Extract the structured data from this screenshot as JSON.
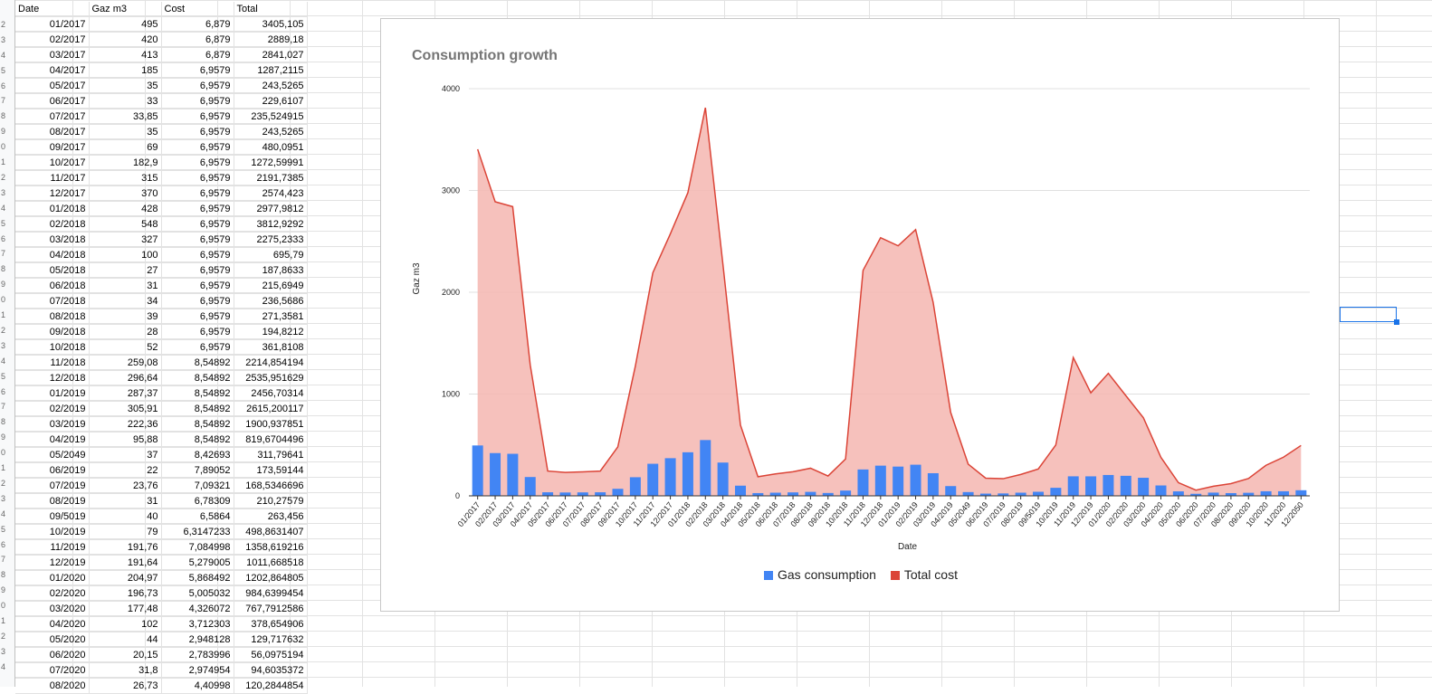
{
  "sheet": {
    "headers": [
      "Date",
      "Gaz m3",
      "Cost",
      "Total"
    ],
    "row_numbers": [
      "",
      "2",
      "3",
      "4",
      "5",
      "6",
      "7",
      "8",
      "9",
      "0",
      "1",
      "2",
      "3",
      "4",
      "5",
      "6",
      "7",
      "8",
      "9",
      "0",
      "1",
      "2",
      "3",
      "4",
      "5",
      "6",
      "7",
      "8",
      "9",
      "0",
      "1",
      "2",
      "3",
      "4",
      "5",
      "6",
      "7",
      "8",
      "9",
      "0",
      "1",
      "2",
      "3",
      "4"
    ],
    "rows": [
      [
        "01/2017",
        "495",
        "6,879",
        "3405,105"
      ],
      [
        "02/2017",
        "420",
        "6,879",
        "2889,18"
      ],
      [
        "03/2017",
        "413",
        "6,879",
        "2841,027"
      ],
      [
        "04/2017",
        "185",
        "6,9579",
        "1287,2115"
      ],
      [
        "05/2017",
        "35",
        "6,9579",
        "243,5265"
      ],
      [
        "06/2017",
        "33",
        "6,9579",
        "229,6107"
      ],
      [
        "07/2017",
        "33,85",
        "6,9579",
        "235,524915"
      ],
      [
        "08/2017",
        "35",
        "6,9579",
        "243,5265"
      ],
      [
        "09/2017",
        "69",
        "6,9579",
        "480,0951"
      ],
      [
        "10/2017",
        "182,9",
        "6,9579",
        "1272,59991"
      ],
      [
        "11/2017",
        "315",
        "6,9579",
        "2191,7385"
      ],
      [
        "12/2017",
        "370",
        "6,9579",
        "2574,423"
      ],
      [
        "01/2018",
        "428",
        "6,9579",
        "2977,9812"
      ],
      [
        "02/2018",
        "548",
        "6,9579",
        "3812,9292"
      ],
      [
        "03/2018",
        "327",
        "6,9579",
        "2275,2333"
      ],
      [
        "04/2018",
        "100",
        "6,9579",
        "695,79"
      ],
      [
        "05/2018",
        "27",
        "6,9579",
        "187,8633"
      ],
      [
        "06/2018",
        "31",
        "6,9579",
        "215,6949"
      ],
      [
        "07/2018",
        "34",
        "6,9579",
        "236,5686"
      ],
      [
        "08/2018",
        "39",
        "6,9579",
        "271,3581"
      ],
      [
        "09/2018",
        "28",
        "6,9579",
        "194,8212"
      ],
      [
        "10/2018",
        "52",
        "6,9579",
        "361,8108"
      ],
      [
        "11/2018",
        "259,08",
        "8,54892",
        "2214,854194"
      ],
      [
        "12/2018",
        "296,64",
        "8,54892",
        "2535,951629"
      ],
      [
        "01/2019",
        "287,37",
        "8,54892",
        "2456,70314"
      ],
      [
        "02/2019",
        "305,91",
        "8,54892",
        "2615,200117"
      ],
      [
        "03/2019",
        "222,36",
        "8,54892",
        "1900,937851"
      ],
      [
        "04/2019",
        "95,88",
        "8,54892",
        "819,6704496"
      ],
      [
        "05/2049",
        "37",
        "8,42693",
        "311,79641"
      ],
      [
        "06/2019",
        "22",
        "7,89052",
        "173,59144"
      ],
      [
        "07/2019",
        "23,76",
        "7,09321",
        "168,5346696"
      ],
      [
        "08/2019",
        "31",
        "6,78309",
        "210,27579"
      ],
      [
        "09/5019",
        "40",
        "6,5864",
        "263,456"
      ],
      [
        "10/2019",
        "79",
        "6,3147233",
        "498,8631407"
      ],
      [
        "11/2019",
        "191,76",
        "7,084998",
        "1358,619216"
      ],
      [
        "12/2019",
        "191,64",
        "5,279005",
        "1011,668518"
      ],
      [
        "01/2020",
        "204,97",
        "5,868492",
        "1202,864805"
      ],
      [
        "02/2020",
        "196,73",
        "5,005032",
        "984,6399454"
      ],
      [
        "03/2020",
        "177,48",
        "4,326072",
        "767,7912586"
      ],
      [
        "04/2020",
        "102",
        "3,712303",
        "378,654906"
      ],
      [
        "05/2020",
        "44",
        "2,948128",
        "129,717632"
      ],
      [
        "06/2020",
        "20,15",
        "2,783996",
        "56,0975194"
      ],
      [
        "07/2020",
        "31,8",
        "2,974954",
        "94,6035372"
      ],
      [
        "08/2020",
        "26,73",
        "4,40998",
        "120,2844854"
      ]
    ]
  },
  "chart": {
    "title": "Consumption growth",
    "xlabel": "Date",
    "ylabel": "Gaz m3",
    "colors": {
      "gas": "#4285f4",
      "total_line": "#db4437",
      "total_fill": "#f4b6b0"
    }
  },
  "legend": {
    "gas": "Gas consumption",
    "total": "Total cost"
  },
  "chart_data": {
    "type": "bar",
    "title": "Consumption growth",
    "xlabel": "Date",
    "ylabel": "Gaz m3",
    "ylim": [
      0,
      4000
    ],
    "yticks": [
      0,
      1000,
      2000,
      3000,
      4000
    ],
    "grid": true,
    "legend_position": "bottom",
    "categories": [
      "01/2017",
      "02/2017",
      "03/2017",
      "04/2017",
      "05/2017",
      "06/2017",
      "07/2017",
      "08/2017",
      "09/2017",
      "10/2017",
      "11/2017",
      "12/2017",
      "01/2018",
      "02/2018",
      "03/2018",
      "04/2018",
      "05/2018",
      "06/2018",
      "07/2018",
      "08/2018",
      "09/2018",
      "10/2018",
      "11/2018",
      "12/2018",
      "01/2019",
      "02/2019",
      "03/2019",
      "04/2019",
      "05/2049",
      "06/2019",
      "07/2019",
      "08/2019",
      "09/5019",
      "10/2019",
      "11/2019",
      "12/2019",
      "01/2020",
      "02/2020",
      "03/2020",
      "04/2020",
      "05/2020",
      "06/2020",
      "07/2020",
      "08/2020",
      "09/2020",
      "10/2020",
      "11/2020",
      "12/2050"
    ],
    "series": [
      {
        "name": "Gas consumption",
        "type": "bar",
        "values": [
          495,
          420,
          413,
          185,
          35,
          33,
          33.85,
          35,
          69,
          182.9,
          315,
          370,
          428,
          548,
          327,
          100,
          27,
          31,
          34,
          39,
          28,
          52,
          259.08,
          296.64,
          287.37,
          305.91,
          222.36,
          95.88,
          37,
          22,
          23.76,
          31,
          40,
          79,
          191.76,
          191.64,
          204.97,
          196.73,
          177.48,
          102,
          44,
          20.15,
          31.8,
          26.73,
          30,
          45,
          45,
          55
        ]
      },
      {
        "name": "Total cost",
        "type": "area",
        "values": [
          3405.1,
          2889.2,
          2841.0,
          1287.2,
          243.5,
          229.6,
          235.5,
          243.5,
          480.1,
          1272.6,
          2191.7,
          2574.4,
          2978.0,
          3812.9,
          2275.2,
          695.8,
          187.9,
          215.7,
          236.6,
          271.4,
          194.8,
          361.8,
          2214.9,
          2536.0,
          2456.7,
          2615.2,
          1900.9,
          819.7,
          311.8,
          173.6,
          168.5,
          210.3,
          263.5,
          498.9,
          1358.6,
          1011.7,
          1202.9,
          984.6,
          767.8,
          378.7,
          129.7,
          56.1,
          94.6,
          120.3,
          170,
          300,
          380,
          495
        ]
      }
    ]
  }
}
